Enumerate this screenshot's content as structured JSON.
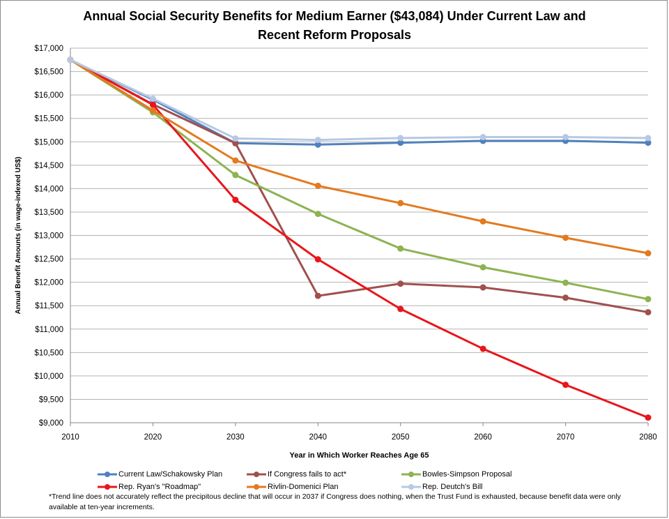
{
  "chart_data": {
    "type": "line",
    "title_lines": [
      "Annual Social Security Benefits for Medium Earner ($43,084) Under Current Law and",
      "Recent Reform Proposals"
    ],
    "xlabel": "Year in Which Worker Reaches Age 65",
    "ylabel": "Annual Benefit Amounts (in wage-indexed US$)",
    "x": [
      2010,
      2020,
      2030,
      2040,
      2050,
      2060,
      2070,
      2080
    ],
    "x_tick_labels": [
      "2010",
      "2020",
      "2030",
      "2040",
      "2050",
      "2060",
      "2070",
      "2080"
    ],
    "ylim": [
      9000,
      17000
    ],
    "y_ticks": [
      9000,
      9500,
      10000,
      10500,
      11000,
      11500,
      12000,
      12500,
      13000,
      13500,
      14000,
      14500,
      15000,
      15500,
      16000,
      16500,
      17000
    ],
    "y_tick_labels": [
      "$9,000",
      "$9,500",
      "$10,000",
      "$10,500",
      "$11,000",
      "$11,500",
      "$12,000",
      "$12,500",
      "$13,000",
      "$13,500",
      "$14,000",
      "$14,500",
      "$15,000",
      "$15,500",
      "$16,000",
      "$16,500",
      "$17,000"
    ],
    "grid": "horizontal",
    "legend_position": "bottom",
    "series": [
      {
        "name": "Current Law/Schakowsky Plan",
        "color": "#4f81bd",
        "values": [
          16750,
          15900,
          14970,
          14940,
          14980,
          15020,
          15020,
          14980
        ]
      },
      {
        "name": "If Congress fails to act*",
        "color": "#a0504d",
        "values": [
          16750,
          15800,
          14970,
          11710,
          11970,
          11890,
          11670,
          11360
        ]
      },
      {
        "name": "Bowles-Simpson Proposal",
        "color": "#8db352",
        "values": [
          16750,
          15630,
          14290,
          13460,
          12720,
          12320,
          11990,
          11640
        ]
      },
      {
        "name": "Rep. Ryan's \"Roadmap\"",
        "color": "#e8161b",
        "values": [
          16750,
          15790,
          13760,
          12490,
          11430,
          10580,
          9810,
          9110
        ]
      },
      {
        "name": "Rivlin-Domenici Plan",
        "color": "#e4791f",
        "values": [
          16750,
          15670,
          14600,
          14060,
          13690,
          13300,
          12950,
          12620
        ]
      },
      {
        "name": "Rep. Deutch's Bill",
        "color": "#b7c8e4",
        "values": [
          16750,
          15920,
          15070,
          15040,
          15080,
          15100,
          15100,
          15080
        ]
      }
    ],
    "series_draw_order": [
      0,
      1,
      2,
      3,
      4,
      5
    ],
    "footnote": "*Trend line does not accurately reflect the precipitous decline that will occur in 2037 if Congress does nothing, when the Trust Fund is exhausted, because benefit data were only available at ten-year increments."
  }
}
